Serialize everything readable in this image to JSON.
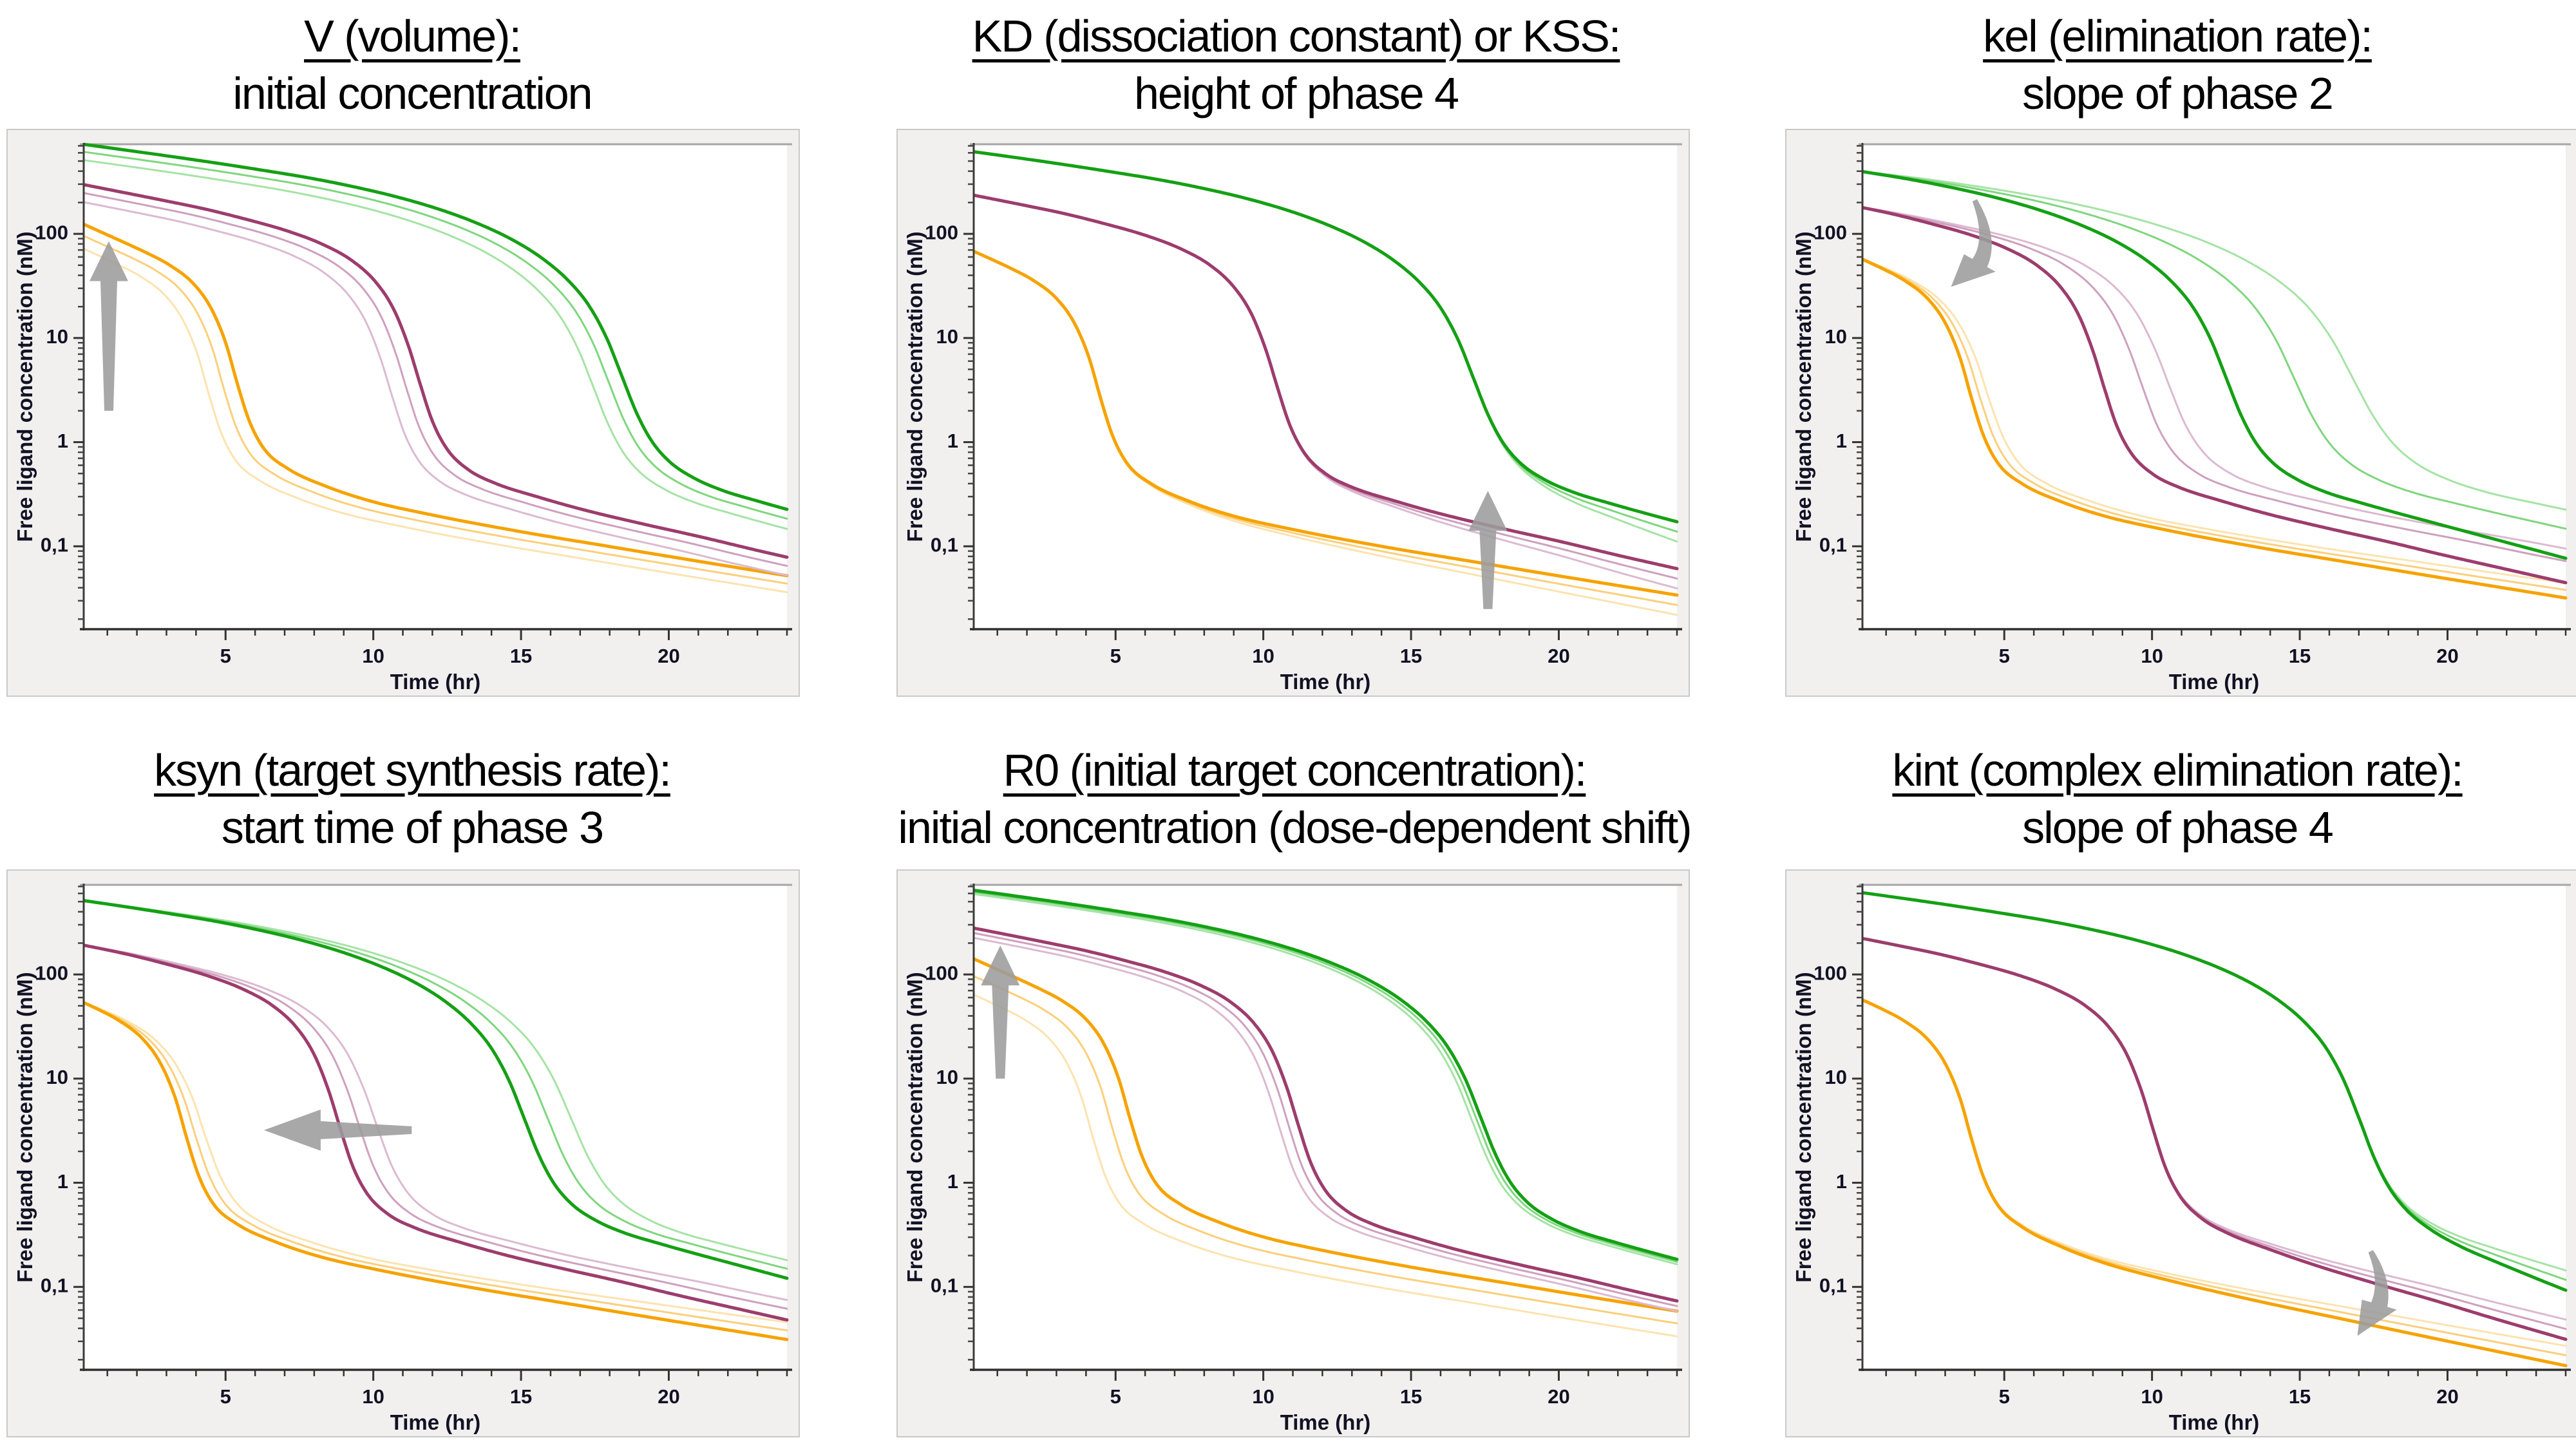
{
  "style": {
    "page_bg": "#ffffff",
    "panel_bg": "#f1f0ef",
    "panel_border": "#c9c9c9",
    "plot_bg": "#ffffff",
    "plot_top_line": "#a6a6a6",
    "axis_line": "#3a3a3a",
    "tick_label_color": "#121224",
    "arrow_color": "#9c9c9c",
    "series_colors": {
      "orange": [
        "#f6a301",
        "#fbcf7b",
        "#fce3af"
      ],
      "purple": [
        "#9d3c6d",
        "#cfa0bf",
        "#dcbad1"
      ],
      "green": [
        "#14a014",
        "#7fd67f",
        "#a5e3a5"
      ]
    }
  },
  "chart_data": {
    "type": "line",
    "log_y": true,
    "xlabel": "Time (hr)",
    "ylabel": "Free ligand concentration (nM)",
    "x_range": [
      0.2,
      24
    ],
    "y_range": [
      0.016,
      725
    ],
    "x_ticks_major": [
      5,
      10,
      15,
      20
    ],
    "x_minor_step": 1,
    "y_tick_values": [
      100,
      10,
      1,
      0.1
    ],
    "y_tick_labels": [
      "100",
      "10",
      "1",
      "0,1"
    ],
    "series_groups": [
      "orange",
      "purple",
      "green"
    ],
    "curve_style_note": "each group: solid curve + two faded variant curves",
    "canonical_curves": {
      "orange": [
        [
          0.2,
          68
        ],
        [
          0.8,
          57
        ],
        [
          1.5,
          46
        ],
        [
          2.2,
          36
        ],
        [
          3,
          24
        ],
        [
          3.6,
          14
        ],
        [
          4.1,
          6.5
        ],
        [
          4.5,
          2.6
        ],
        [
          4.9,
          1.15
        ],
        [
          5.4,
          0.62
        ],
        [
          6.2,
          0.4
        ],
        [
          7.5,
          0.27
        ],
        [
          9,
          0.195
        ],
        [
          11,
          0.145
        ],
        [
          14,
          0.1
        ],
        [
          17,
          0.072
        ],
        [
          20,
          0.052
        ],
        [
          24,
          0.034
        ]
      ],
      "purple": [
        [
          0.2,
          235
        ],
        [
          1,
          212
        ],
        [
          2,
          186
        ],
        [
          3.2,
          158
        ],
        [
          4.5,
          128
        ],
        [
          6,
          97
        ],
        [
          7.2,
          72
        ],
        [
          8.2,
          50
        ],
        [
          9,
          31
        ],
        [
          9.6,
          17
        ],
        [
          10.1,
          7.5
        ],
        [
          10.5,
          3.2
        ],
        [
          10.9,
          1.45
        ],
        [
          11.4,
          0.78
        ],
        [
          12.1,
          0.5
        ],
        [
          13,
          0.37
        ],
        [
          14.5,
          0.27
        ],
        [
          16,
          0.205
        ],
        [
          18,
          0.15
        ],
        [
          20,
          0.112
        ],
        [
          22,
          0.082
        ],
        [
          24,
          0.061
        ]
      ],
      "green": [
        [
          0.2,
          615
        ],
        [
          1,
          572
        ],
        [
          2.2,
          512
        ],
        [
          3.5,
          452
        ],
        [
          5,
          388
        ],
        [
          6.5,
          330
        ],
        [
          8,
          272
        ],
        [
          9.5,
          216
        ],
        [
          11,
          162
        ],
        [
          12.3,
          118
        ],
        [
          13.4,
          84
        ],
        [
          14.4,
          56
        ],
        [
          15.3,
          34
        ],
        [
          16,
          19.5
        ],
        [
          16.6,
          9.5
        ],
        [
          17.1,
          4.2
        ],
        [
          17.6,
          1.85
        ],
        [
          18.1,
          1.0
        ],
        [
          18.7,
          0.63
        ],
        [
          19.5,
          0.44
        ],
        [
          20.5,
          0.33
        ],
        [
          21.7,
          0.26
        ],
        [
          23,
          0.205
        ],
        [
          24,
          0.172
        ]
      ]
    },
    "panels": [
      {
        "id": "V",
        "title1": "V (volume):",
        "title2": "initial concentration",
        "base": {
          "orange": {
            "dt": 0.9,
            "dy": 0.145
          },
          "purple": {
            "dt": 1.1,
            "dy": 0.04
          },
          "green": {
            "dt": 1.3,
            "dy": 0.02
          }
        },
        "variation": {
          "type": "shift",
          "variants": [
            {
              "dy": -0.055,
              "dt": -0.45
            },
            {
              "dy": -0.115,
              "dt": -0.95
            }
          ]
        },
        "arrow": {
          "kind": "straight",
          "tail": [
            1.05,
            2.0
          ],
          "tip": [
            1.05,
            85
          ]
        }
      },
      {
        "id": "KD",
        "title1": "KD (dissociation constant) or KSS:",
        "title2": "height of phase 4",
        "base": {},
        "variation": {
          "type": "ramp",
          "ramp_start": {
            "orange": 4.2,
            "purple": 10.2,
            "green": 17.2
          },
          "dy_end": [
            0,
            -0.095,
            -0.19
          ]
        },
        "arrow": {
          "kind": "straight",
          "tail": [
            17.6,
            0.025
          ],
          "tip": [
            17.6,
            0.34
          ]
        }
      },
      {
        "id": "kel",
        "title1": "kel (elimination rate):",
        "title2": "slope of phase 2",
        "base": {
          "orange": {
            "dt": -0.6
          },
          "purple": {
            "dt": -2.1
          },
          "green": {
            "dt": -4.6
          }
        },
        "variation": {
          "type": "timescale",
          "s": {
            "orange": [
              0.93,
              0.87
            ],
            "purple": [
              0.865,
              0.79
            ],
            "green": [
              0.845,
              0.745
            ]
          }
        },
        "arrow": {
          "kind": "curved",
          "tail": [
            4.0,
            210
          ],
          "ctrl": [
            5.0,
            52
          ],
          "tip": [
            3.2,
            31
          ]
        }
      },
      {
        "id": "ksyn",
        "title1": "ksyn (target synthesis rate):",
        "title2": "start time of phase 3",
        "base": {
          "orange": {
            "dt": -0.8
          },
          "purple": {
            "dt": -1.6
          },
          "green": {
            "dt": -2.0
          }
        },
        "variation": {
          "type": "timescale",
          "s": {
            "orange": [
              0.92,
              0.85
            ],
            "purple": [
              0.93,
              0.875
            ],
            "green": [
              0.95,
              0.905
            ]
          }
        },
        "arrow": {
          "kind": "straight",
          "tail": [
            11.3,
            3.2
          ],
          "tip": [
            6.3,
            3.2
          ]
        }
      },
      {
        "id": "R0",
        "title1": "R0 (initial target concentration):",
        "title2": "initial concentration (dose-dependent shift)",
        "base": {
          "orange": {
            "dt": 1.0,
            "dy": 0.19
          },
          "purple": {
            "dt": 0.7,
            "dy": 0.035
          },
          "green": {
            "dt": 0.25,
            "dy": 0.01
          }
        },
        "variation": {
          "type": "shift_per_group",
          "variants": {
            "orange": [
              {
                "dy": -0.09,
                "dt": -0.6
              },
              {
                "dy": -0.185,
                "dt": -1.25
              }
            ],
            "purple": [
              {
                "dy": -0.03,
                "dt": -0.3
              },
              {
                "dy": -0.06,
                "dt": -0.6
              }
            ],
            "green": [
              {
                "dy": -0.012,
                "dt": -0.15
              },
              {
                "dy": -0.025,
                "dt": -0.3
              }
            ]
          }
        },
        "arrow": {
          "kind": "straight",
          "tail": [
            1.1,
            10
          ],
          "tip": [
            1.1,
            190
          ]
        }
      },
      {
        "id": "kint",
        "title1": "kint (complex elimination rate):",
        "title2": "slope of phase 4",
        "base": {
          "orange": {
            "dt": -0.6
          },
          "purple": {
            "dt": -0.45
          },
          "green": {
            "dt": -0.1
          }
        },
        "variation": {
          "type": "ramp",
          "ramp_start": {
            "orange": 3.6,
            "purple": 9.75,
            "green": 17.1
          },
          "dy_end": [
            -0.26,
            -0.16,
            -0.07
          ]
        },
        "arrow": {
          "kind": "curved",
          "tail": [
            17.4,
            0.22
          ],
          "ctrl": [
            18.3,
            0.07
          ],
          "tip": [
            16.95,
            0.034
          ]
        }
      }
    ]
  }
}
